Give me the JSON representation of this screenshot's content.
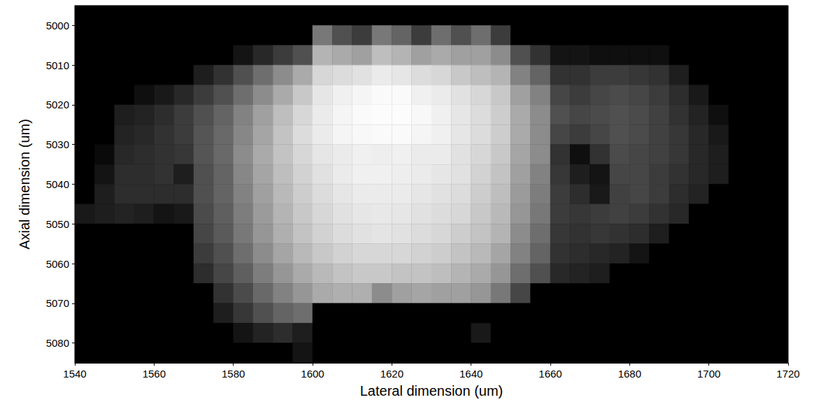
{
  "chart_data": {
    "type": "heatmap",
    "x_label": "Lateral dimension (um)",
    "y_label": "Axial dimension (um)",
    "xlim": [
      1540,
      1720
    ],
    "xticks": [
      1540,
      1560,
      1580,
      1600,
      1620,
      1640,
      1660,
      1680,
      1700,
      1720
    ],
    "ylim": [
      4995,
      5085
    ],
    "yticks": [
      5000,
      5010,
      5020,
      5030,
      5040,
      5050,
      5060,
      5070,
      5080
    ],
    "x_bins": [
      1540,
      1545,
      1550,
      1555,
      1560,
      1565,
      1570,
      1575,
      1580,
      1585,
      1590,
      1595,
      1600,
      1605,
      1610,
      1615,
      1620,
      1625,
      1630,
      1635,
      1640,
      1645,
      1650,
      1655,
      1660,
      1665,
      1670,
      1675,
      1680,
      1685,
      1690,
      1695,
      1700,
      1705,
      1710,
      1715,
      1720
    ],
    "y_bins": [
      4995,
      5000,
      5005,
      5010,
      5015,
      5020,
      5025,
      5030,
      5035,
      5040,
      5045,
      5050,
      5055,
      5060,
      5065,
      5070,
      5075,
      5080,
      5085
    ],
    "intensity": [
      [
        0,
        0,
        0,
        0,
        0,
        0,
        0,
        0,
        0,
        0,
        0,
        0,
        0,
        0,
        0,
        0,
        0,
        0,
        0,
        0,
        0,
        0,
        0,
        0,
        0,
        0,
        0,
        0,
        0,
        0,
        0,
        0,
        0,
        0,
        0,
        0
      ],
      [
        0,
        0,
        0,
        0,
        0,
        0,
        0,
        0,
        0,
        0,
        0,
        0,
        120,
        80,
        60,
        120,
        100,
        60,
        110,
        80,
        110,
        60,
        0,
        0,
        0,
        0,
        0,
        0,
        0,
        0,
        0,
        0,
        0,
        0,
        0,
        0
      ],
      [
        0,
        0,
        0,
        0,
        0,
        0,
        0,
        0,
        20,
        40,
        60,
        80,
        180,
        170,
        160,
        190,
        180,
        160,
        170,
        160,
        160,
        140,
        80,
        50,
        20,
        20,
        15,
        15,
        15,
        15,
        0,
        0,
        0,
        0,
        0,
        0
      ],
      [
        0,
        0,
        0,
        0,
        0,
        0,
        30,
        50,
        80,
        110,
        140,
        170,
        215,
        220,
        225,
        235,
        230,
        220,
        215,
        200,
        190,
        180,
        130,
        100,
        50,
        50,
        60,
        60,
        55,
        50,
        30,
        0,
        0,
        0,
        0,
        0
      ],
      [
        0,
        0,
        0,
        15,
        25,
        40,
        60,
        80,
        110,
        140,
        170,
        200,
        230,
        240,
        245,
        250,
        250,
        240,
        235,
        225,
        215,
        200,
        160,
        130,
        70,
        60,
        70,
        75,
        70,
        60,
        45,
        25,
        0,
        0,
        0,
        0
      ],
      [
        0,
        0,
        30,
        35,
        45,
        60,
        80,
        100,
        130,
        160,
        190,
        215,
        235,
        245,
        250,
        252,
        252,
        248,
        240,
        230,
        220,
        205,
        170,
        140,
        80,
        70,
        75,
        80,
        75,
        65,
        50,
        35,
        15,
        0,
        0,
        0
      ],
      [
        0,
        0,
        35,
        40,
        50,
        60,
        85,
        105,
        135,
        165,
        195,
        220,
        235,
        245,
        248,
        250,
        250,
        245,
        240,
        230,
        220,
        205,
        170,
        140,
        70,
        60,
        70,
        80,
        75,
        65,
        55,
        40,
        25,
        0,
        0,
        0
      ],
      [
        0,
        10,
        40,
        45,
        50,
        55,
        85,
        105,
        140,
        170,
        195,
        215,
        230,
        235,
        240,
        238,
        240,
        235,
        235,
        225,
        215,
        200,
        165,
        140,
        50,
        15,
        50,
        75,
        70,
        65,
        55,
        40,
        30,
        0,
        0,
        0
      ],
      [
        0,
        20,
        45,
        45,
        50,
        30,
        80,
        100,
        135,
        165,
        190,
        210,
        225,
        235,
        240,
        240,
        238,
        235,
        230,
        225,
        210,
        195,
        160,
        130,
        55,
        30,
        20,
        70,
        70,
        60,
        50,
        40,
        30,
        0,
        0,
        0
      ],
      [
        0,
        30,
        45,
        45,
        45,
        45,
        80,
        100,
        130,
        160,
        185,
        205,
        220,
        230,
        235,
        235,
        235,
        230,
        225,
        220,
        205,
        190,
        155,
        125,
        60,
        45,
        25,
        65,
        70,
        60,
        45,
        35,
        0,
        0,
        0,
        0
      ],
      [
        25,
        30,
        35,
        30,
        20,
        25,
        75,
        95,
        125,
        155,
        180,
        200,
        215,
        225,
        230,
        232,
        230,
        225,
        220,
        215,
        200,
        185,
        150,
        120,
        60,
        55,
        60,
        65,
        60,
        50,
        40,
        0,
        0,
        0,
        0,
        0
      ],
      [
        0,
        0,
        0,
        0,
        0,
        0,
        70,
        90,
        120,
        150,
        175,
        195,
        210,
        220,
        225,
        228,
        225,
        220,
        215,
        205,
        195,
        180,
        140,
        110,
        55,
        50,
        55,
        50,
        45,
        30,
        0,
        0,
        0,
        0,
        0,
        0
      ],
      [
        0,
        0,
        0,
        0,
        0,
        0,
        60,
        80,
        110,
        140,
        165,
        185,
        200,
        210,
        215,
        215,
        215,
        210,
        205,
        195,
        185,
        165,
        130,
        100,
        50,
        45,
        40,
        35,
        20,
        0,
        0,
        0,
        0,
        0,
        0,
        0
      ],
      [
        0,
        0,
        0,
        0,
        0,
        0,
        45,
        70,
        95,
        125,
        150,
        170,
        185,
        195,
        200,
        200,
        195,
        195,
        190,
        180,
        170,
        150,
        110,
        80,
        40,
        35,
        30,
        0,
        0,
        0,
        0,
        0,
        0,
        0,
        0,
        0
      ],
      [
        0,
        0,
        0,
        0,
        0,
        0,
        0,
        50,
        75,
        105,
        130,
        150,
        170,
        175,
        175,
        140,
        160,
        165,
        160,
        160,
        150,
        120,
        70,
        0,
        0,
        0,
        0,
        0,
        0,
        0,
        0,
        0,
        0,
        0,
        0,
        0
      ],
      [
        0,
        0,
        0,
        0,
        0,
        0,
        0,
        30,
        55,
        80,
        100,
        110,
        0,
        0,
        0,
        0,
        0,
        0,
        0,
        0,
        0,
        0,
        0,
        0,
        0,
        0,
        0,
        0,
        0,
        0,
        0,
        0,
        0,
        0,
        0,
        0
      ],
      [
        0,
        0,
        0,
        0,
        0,
        0,
        0,
        0,
        20,
        35,
        45,
        30,
        0,
        0,
        0,
        0,
        0,
        0,
        0,
        0,
        25,
        0,
        0,
        0,
        0,
        0,
        0,
        0,
        0,
        0,
        0,
        0,
        0,
        0,
        0,
        0
      ],
      [
        0,
        0,
        0,
        0,
        0,
        0,
        0,
        0,
        0,
        0,
        0,
        20,
        0,
        0,
        0,
        0,
        0,
        0,
        0,
        0,
        0,
        0,
        0,
        0,
        0,
        0,
        0,
        0,
        0,
        0,
        0,
        0,
        0,
        0,
        0,
        0
      ]
    ]
  }
}
